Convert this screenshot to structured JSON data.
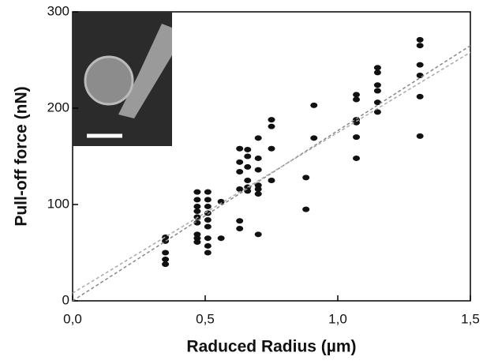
{
  "chart_data": {
    "type": "scatter",
    "xlabel": "Raduced Radius (µm)",
    "ylabel": "Pull-off force (nN)",
    "xlim": [
      0,
      1.5
    ],
    "ylim": [
      0,
      300
    ],
    "xticks": [
      {
        "value": 0,
        "label": "0,0"
      },
      {
        "value": 0.5,
        "label": "0,5"
      },
      {
        "value": 1,
        "label": "1,0"
      },
      {
        "value": 1.5,
        "label": "1,5"
      }
    ],
    "yticks": [
      0,
      100,
      200,
      300
    ],
    "series": [
      {
        "type": "scatter",
        "color": "#111111",
        "x": [
          0.35,
          0.35,
          0.35,
          0.35,
          0.35,
          0.47,
          0.47,
          0.47,
          0.47,
          0.47,
          0.47,
          0.47,
          0.47,
          0.47,
          0.51,
          0.51,
          0.51,
          0.51,
          0.51,
          0.51,
          0.51,
          0.51,
          0.51,
          0.56,
          0.56,
          0.63,
          0.63,
          0.63,
          0.63,
          0.63,
          0.63,
          0.66,
          0.66,
          0.66,
          0.66,
          0.66,
          0.66,
          0.7,
          0.7,
          0.7,
          0.7,
          0.7,
          0.7,
          0.7,
          0.75,
          0.75,
          0.75,
          0.75,
          0.88,
          0.88,
          0.91,
          0.91,
          1.07,
          1.07,
          1.07,
          1.07,
          1.07,
          1.07,
          1.15,
          1.15,
          1.15,
          1.15,
          1.15,
          1.15,
          1.31,
          1.31,
          1.31,
          1.31,
          1.31,
          1.31
        ],
        "values": [
          66,
          62,
          50,
          43,
          38,
          113,
          105,
          98,
          93,
          87,
          81,
          69,
          65,
          61,
          113,
          105,
          98,
          91,
          84,
          77,
          65,
          57,
          50,
          103,
          65,
          158,
          144,
          134,
          116,
          83,
          75,
          157,
          150,
          139,
          125,
          118,
          114,
          169,
          148,
          136,
          120,
          116,
          111,
          69,
          188,
          181,
          158,
          125,
          128,
          95,
          203,
          169,
          214,
          209,
          188,
          185,
          170,
          148,
          242,
          237,
          224,
          218,
          206,
          196,
          271,
          265,
          245,
          234,
          212,
          171
        ]
      },
      {
        "type": "line",
        "color": "#888888",
        "x": [
          0,
          1.5
        ],
        "values": [
          0,
          265
        ]
      },
      {
        "type": "line",
        "color": "#aaaaaa",
        "x": [
          0,
          1.5
        ],
        "values": [
          8,
          258
        ]
      }
    ]
  }
}
